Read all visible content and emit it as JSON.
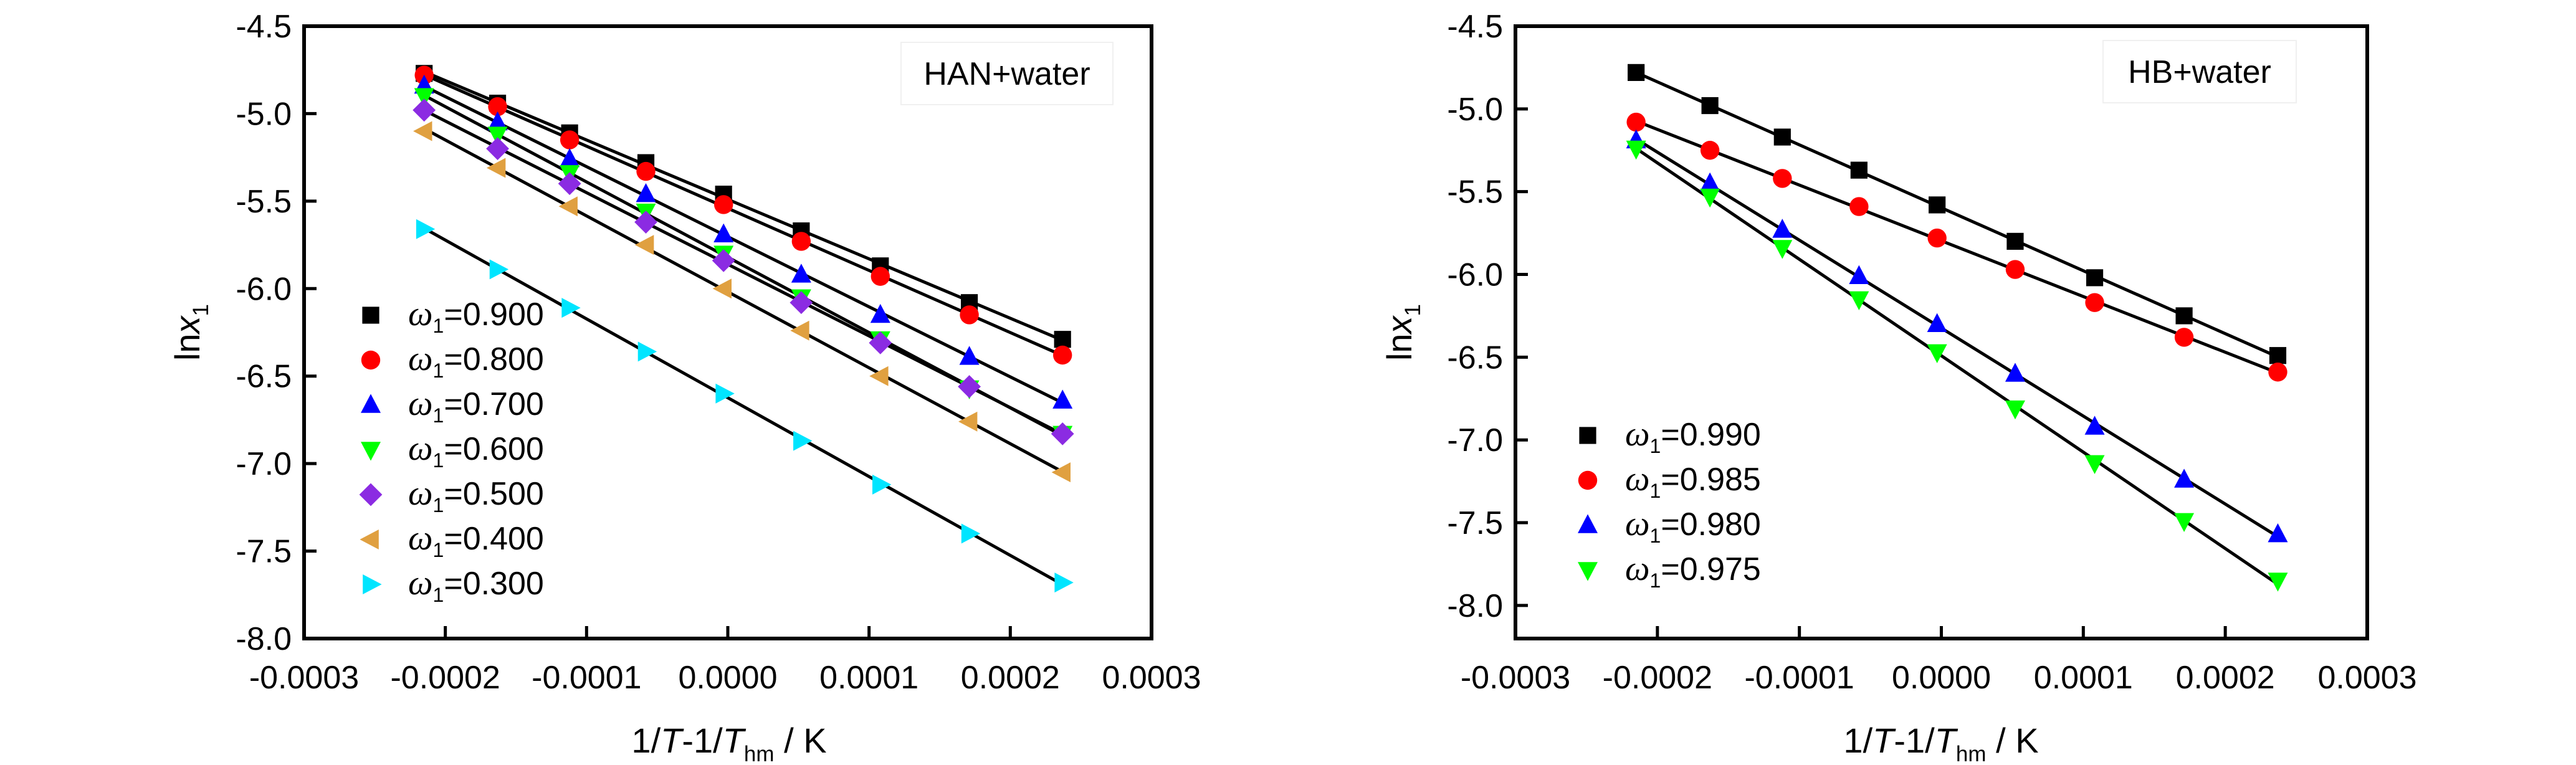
{
  "chart_data": [
    {
      "type": "scatter",
      "panel_label": "HAN+water",
      "xlabel_parts": [
        "1/",
        "T",
        "-1/",
        "T",
        "hm",
        " / K"
      ],
      "ylabel_parts": [
        "ln",
        "x",
        "1"
      ],
      "xlim": [
        -0.0003,
        0.0003
      ],
      "ylim": [
        -8.0,
        -4.5
      ],
      "xticks": [
        "-0.0003",
        "-0.0002",
        "-0.0001",
        "0.0000",
        "0.0001",
        "0.0002",
        "0.0003"
      ],
      "xtick_values": [
        -0.0003,
        -0.0002,
        -0.0001,
        0.0,
        0.0001,
        0.0002,
        0.0003
      ],
      "yticks": [
        "-4.5",
        "-5.0",
        "-5.5",
        "-6.0",
        "-6.5",
        "-7.0",
        "-7.5",
        "-8.0"
      ],
      "ytick_values": [
        -4.5,
        -5.0,
        -5.5,
        -6.0,
        -6.5,
        -7.0,
        -7.5,
        -8.0
      ],
      "grid": false,
      "legend_position": "bottom-left",
      "x": [
        -0.000215,
        -0.000163,
        -0.000112,
        -5.8e-05,
        -3e-06,
        5.2e-05,
        0.000108,
        0.000171,
        0.000237
      ],
      "series": [
        {
          "name_symbol": "ω",
          "name_sub": "1",
          "name_value": "=0.900",
          "marker": "square",
          "color": "#000000",
          "values": [
            -4.77,
            -4.94,
            -5.11,
            -5.28,
            -5.46,
            -5.67,
            -5.87,
            -6.08,
            -6.29
          ]
        },
        {
          "name_symbol": "ω",
          "name_sub": "1",
          "name_value": "=0.800",
          "marker": "circle",
          "color": "#ff0000",
          "values": [
            -4.78,
            -4.96,
            -5.15,
            -5.33,
            -5.52,
            -5.73,
            -5.93,
            -6.15,
            -6.38
          ]
        },
        {
          "name_symbol": "ω",
          "name_sub": "1",
          "name_value": "=0.700",
          "marker": "triangle-up",
          "color": "#0000ff",
          "values": [
            -4.84,
            -5.05,
            -5.26,
            -5.46,
            -5.69,
            -5.92,
            -6.15,
            -6.39,
            -6.64
          ]
        },
        {
          "name_symbol": "ω",
          "name_sub": "1",
          "name_value": "=0.600",
          "marker": "triangle-down",
          "color": "#00ff00",
          "values": [
            -4.9,
            -5.12,
            -5.34,
            -5.56,
            -5.8,
            -6.05,
            -6.29,
            -6.57,
            -6.83
          ]
        },
        {
          "name_symbol": "ω",
          "name_sub": "1",
          "name_value": "=0.500",
          "marker": "diamond",
          "color": "#8b2be2",
          "values": [
            -4.98,
            -5.2,
            -5.4,
            -5.62,
            -5.84,
            -6.08,
            -6.31,
            -6.56,
            -6.83
          ]
        },
        {
          "name_symbol": "ω",
          "name_sub": "1",
          "name_value": "=0.400",
          "marker": "triangle-left",
          "color": "#e0a040",
          "values": [
            -5.1,
            -5.31,
            -5.53,
            -5.75,
            -6.0,
            -6.24,
            -6.5,
            -6.76,
            -7.05
          ]
        },
        {
          "name_symbol": "ω",
          "name_sub": "1",
          "name_value": "=0.300",
          "marker": "triangle-right",
          "color": "#00e5ff",
          "values": [
            -5.66,
            -5.89,
            -6.11,
            -6.36,
            -6.6,
            -6.87,
            -7.12,
            -7.4,
            -7.68
          ]
        }
      ]
    },
    {
      "type": "scatter",
      "panel_label": "HB+water",
      "xlabel_parts": [
        "1/",
        "T",
        "-1/",
        "T",
        "hm",
        " / K"
      ],
      "ylabel_parts": [
        "ln",
        "x",
        "1"
      ],
      "xlim": [
        -0.0003,
        0.0003
      ],
      "ylim": [
        -8.2,
        -4.5
      ],
      "xticks": [
        "-0.0003",
        "-0.0002",
        "-0.0001",
        "0.0000",
        "0.0001",
        "0.0002",
        "0.0003"
      ],
      "xtick_values": [
        -0.0003,
        -0.0002,
        -0.0001,
        0.0,
        0.0001,
        0.0002,
        0.0003
      ],
      "yticks": [
        "-4.5",
        "-5.0",
        "-5.5",
        "-6.0",
        "-6.5",
        "-7.0",
        "-7.5",
        "-8.0"
      ],
      "ytick_values": [
        -4.5,
        -5.0,
        -5.5,
        -6.0,
        -6.5,
        -7.0,
        -7.5,
        -8.0
      ],
      "grid": false,
      "legend_position": "bottom-left",
      "x": [
        -0.000215,
        -0.000163,
        -0.000112,
        -5.8e-05,
        -3e-06,
        5.2e-05,
        0.000108,
        0.000171,
        0.000237
      ],
      "series": [
        {
          "name_symbol": "ω",
          "name_sub": "1",
          "name_value": "=0.990",
          "marker": "square",
          "color": "#000000",
          "values": [
            -4.78,
            -4.98,
            -5.17,
            -5.37,
            -5.58,
            -5.8,
            -6.02,
            -6.25,
            -6.49
          ]
        },
        {
          "name_symbol": "ω",
          "name_sub": "1",
          "name_value": "=0.985",
          "marker": "circle",
          "color": "#ff0000",
          "values": [
            -5.08,
            -5.25,
            -5.42,
            -5.59,
            -5.78,
            -5.97,
            -6.17,
            -6.38,
            -6.59
          ]
        },
        {
          "name_symbol": "ω",
          "name_sub": "1",
          "name_value": "=0.980",
          "marker": "triangle-up",
          "color": "#0000ff",
          "values": [
            -5.19,
            -5.45,
            -5.73,
            -6.01,
            -6.3,
            -6.6,
            -6.92,
            -7.24,
            -7.57
          ]
        },
        {
          "name_symbol": "ω",
          "name_sub": "1",
          "name_value": "=0.975",
          "marker": "triangle-down",
          "color": "#00ff00",
          "values": [
            -5.24,
            -5.53,
            -5.84,
            -6.15,
            -6.47,
            -6.81,
            -7.14,
            -7.49,
            -7.85
          ]
        }
      ]
    }
  ]
}
